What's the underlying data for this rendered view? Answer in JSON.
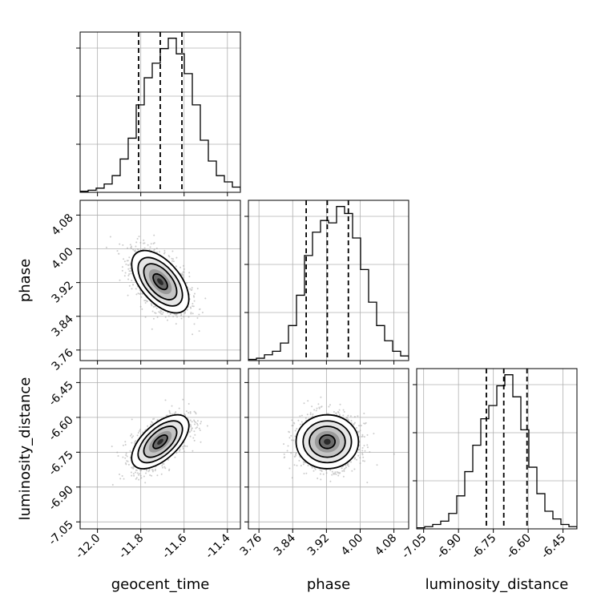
{
  "chart_data": {
    "type": "corner",
    "parameters": [
      "geocent_time",
      "phase",
      "luminosity_distance"
    ],
    "axis_labels": [
      "geocent_time",
      "phase",
      "luminosity_distance"
    ],
    "ranges": [
      [
        -12.08,
        -11.34
      ],
      [
        3.735,
        4.115
      ],
      [
        -7.08,
        -6.39
      ]
    ],
    "ticks": [
      [
        "-12.0",
        "-11.8",
        "-11.6",
        "-11.4"
      ],
      [
        "3.76",
        "3.84",
        "3.92",
        "4.00",
        "4.08"
      ],
      [
        "-7.05",
        "-6.90",
        "-6.75",
        "-6.60",
        "-6.45"
      ]
    ],
    "quantiles": [
      [
        -11.81,
        -11.71,
        -11.61
      ],
      [
        3.872,
        3.922,
        3.972
      ],
      [
        -6.78,
        -6.705,
        -6.605
      ]
    ],
    "histograms": [
      {
        "parameter": "geocent_time",
        "bin_edges_start": -12.08,
        "bin_width": 0.037,
        "counts": [
          0.01,
          0.02,
          0.04,
          0.08,
          0.16,
          0.32,
          0.52,
          0.84,
          1.1,
          1.24,
          1.38,
          1.48,
          1.33,
          1.14,
          0.84,
          0.5,
          0.3,
          0.16,
          0.1,
          0.05,
          0.02,
          0.01,
          0.0
        ]
      },
      {
        "parameter": "phase",
        "bin_edges_start": 3.735,
        "bin_width": 0.019,
        "counts": [
          0.01,
          0.02,
          0.05,
          0.08,
          0.15,
          0.3,
          0.56,
          0.9,
          1.1,
          1.2,
          1.18,
          1.32,
          1.26,
          1.05,
          0.78,
          0.5,
          0.3,
          0.17,
          0.08,
          0.04,
          0.02
        ]
      },
      {
        "parameter": "luminosity_distance",
        "bin_edges_start": -7.08,
        "bin_width": 0.0345,
        "counts": [
          0.01,
          0.02,
          0.04,
          0.07,
          0.14,
          0.3,
          0.52,
          0.76,
          1.0,
          1.12,
          1.3,
          1.4,
          1.2,
          0.9,
          0.56,
          0.32,
          0.16,
          0.09,
          0.04,
          0.02
        ]
      }
    ],
    "contour_pairs": [
      {
        "x": "geocent_time",
        "y": "phase",
        "center": [
          -11.71,
          3.922
        ],
        "correlation": -0.55
      },
      {
        "x": "geocent_time",
        "y": "luminosity_distance",
        "center": [
          -11.71,
          -6.705
        ],
        "correlation": 0.6
      },
      {
        "x": "phase",
        "y": "luminosity_distance",
        "center": [
          3.922,
          -6.705
        ],
        "correlation": 0.0
      }
    ],
    "sigma": [
      0.066,
      0.037,
      0.058
    ],
    "grid": true
  }
}
